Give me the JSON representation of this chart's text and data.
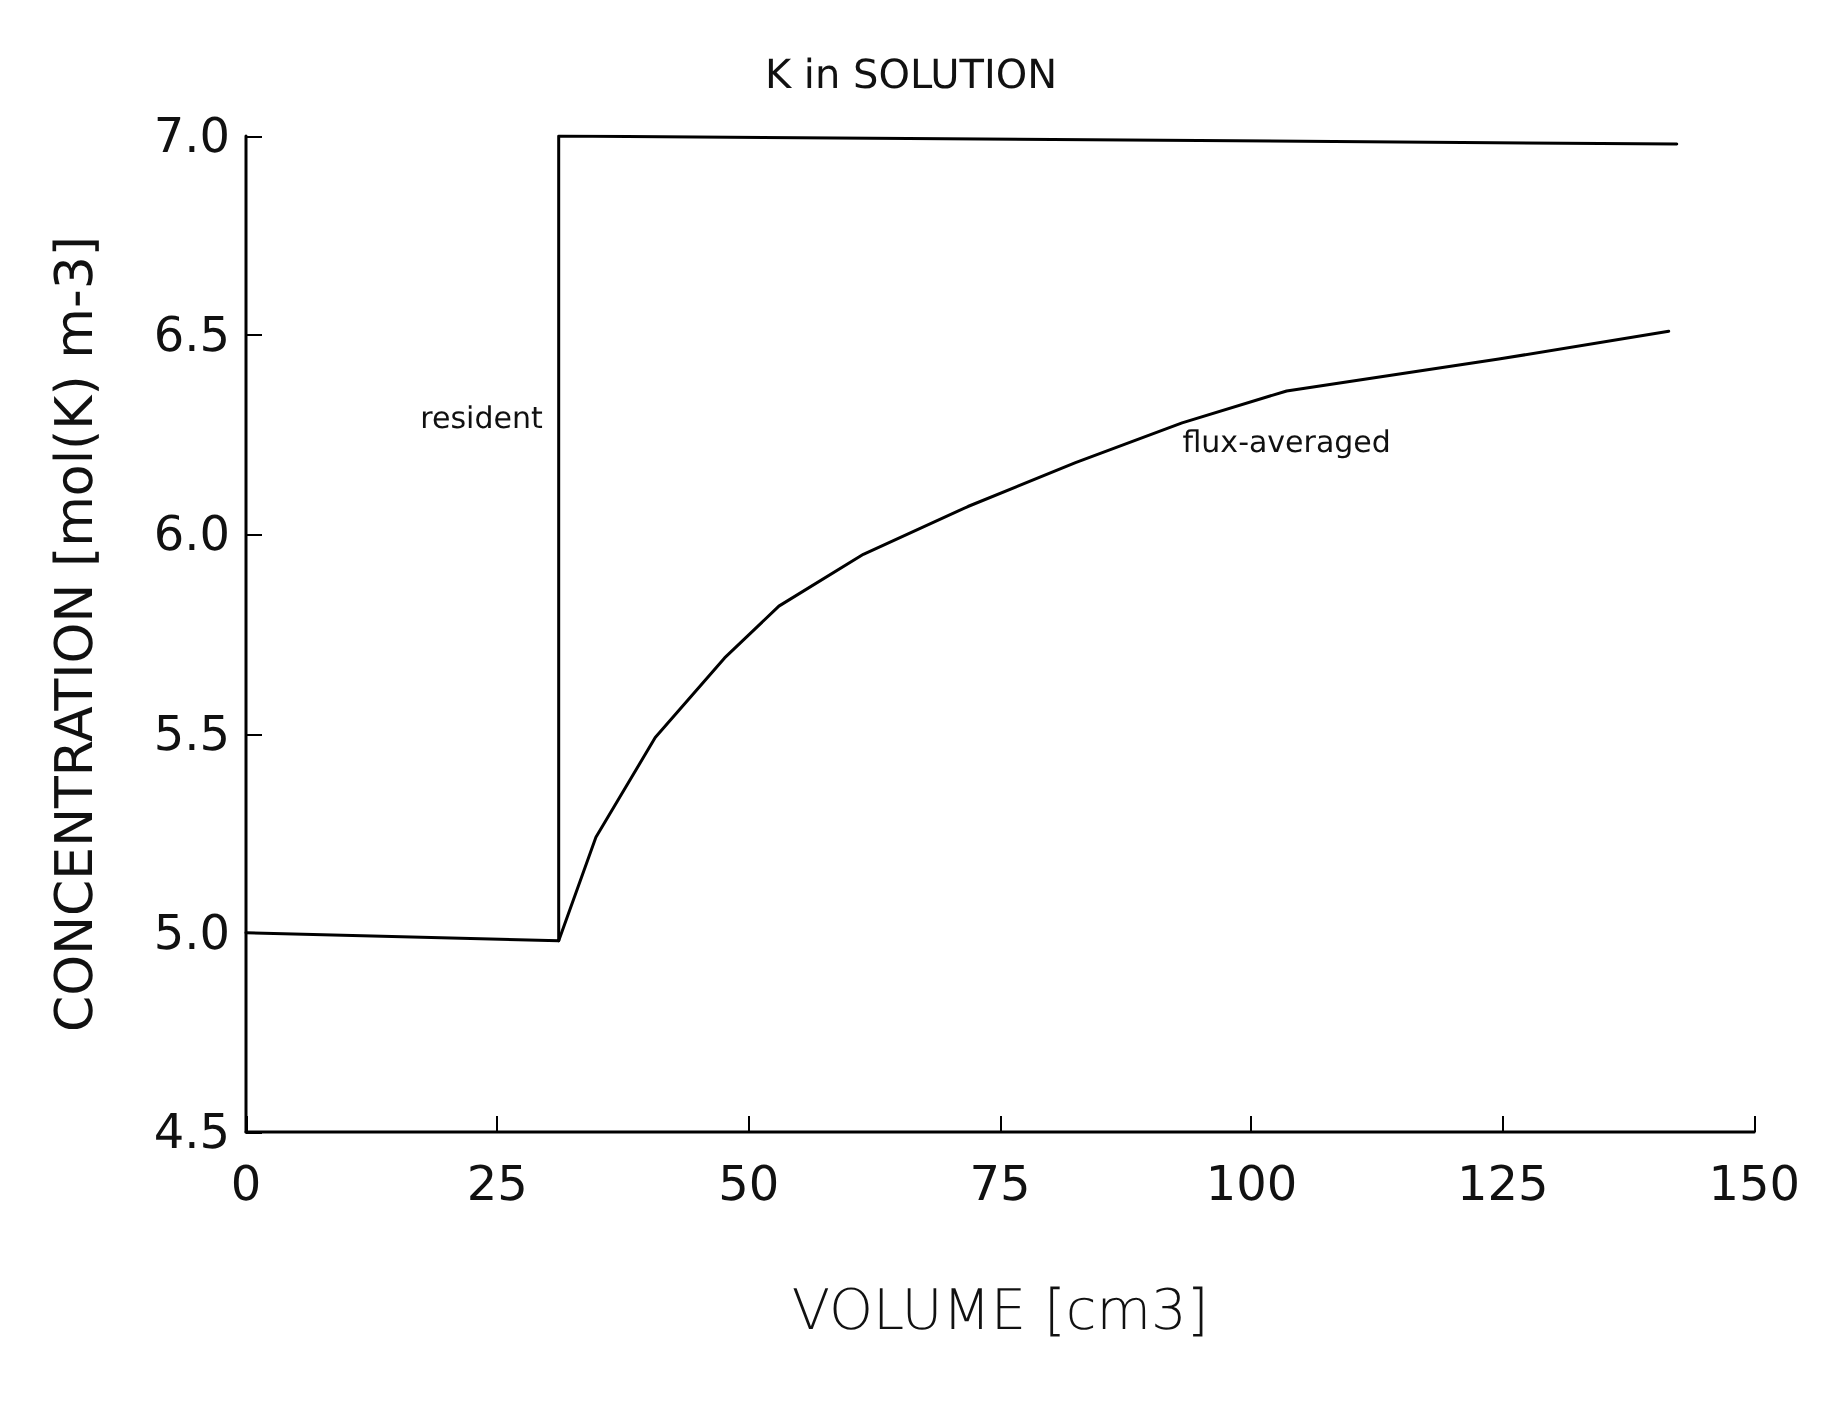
{
  "chart_data": {
    "type": "line",
    "title": "K in SOLUTION",
    "xlabel": "VOLUME [cm3]",
    "ylabel": "CONCENTRATION [mol(K) m-3]",
    "xlim": [
      0,
      150
    ],
    "xticks": [
      0,
      25,
      50,
      75,
      100,
      125,
      150
    ],
    "ylim": [
      4.5,
      7.0
    ],
    "yticks": [
      {
        "value": 4.5,
        "label": "4.5"
      },
      {
        "value": 5.0,
        "label": "5.0"
      },
      {
        "value": 5.5,
        "label": "5.5"
      },
      {
        "value": 6.0,
        "label": "6.0"
      },
      {
        "value": 6.5,
        "label": "6.5"
      },
      {
        "value": 7.0,
        "label": "7.0"
      }
    ],
    "grid": false,
    "legend": false,
    "marker": "none",
    "line_style": "solid",
    "series": [
      {
        "name": "resident",
        "color": "#000000",
        "x": [
          0,
          31.1,
          31.1,
          142.3
        ],
        "values": [
          5.0,
          4.98,
          7.0,
          6.98
        ]
      },
      {
        "name": "flux-averaged",
        "color": "#000000",
        "x": [
          31.1,
          34.8,
          40.7,
          47.6,
          53,
          61.4,
          71.8,
          82.5,
          93.1,
          103.5,
          124.6,
          141.5
        ],
        "values": [
          4.98,
          5.24,
          5.49,
          5.69,
          5.82,
          5.95,
          6.07,
          6.18,
          6.28,
          6.36,
          6.44,
          6.51
        ]
      }
    ]
  }
}
